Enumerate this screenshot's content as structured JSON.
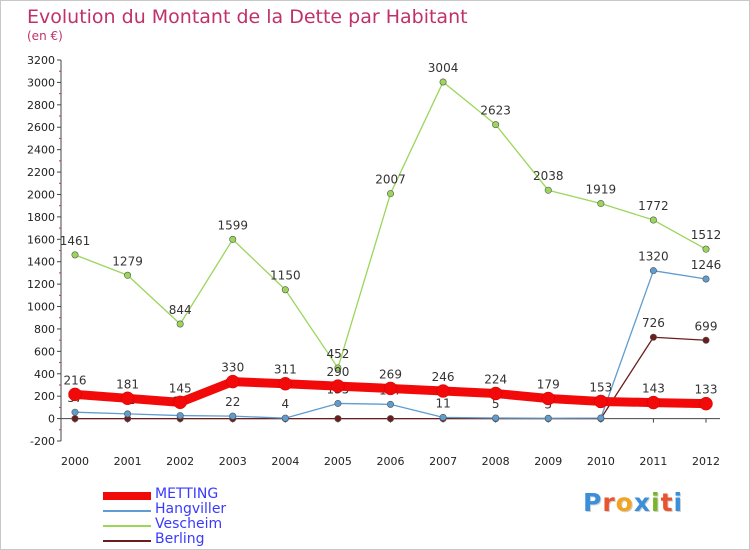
{
  "header": {
    "title": "Evolution du Montant de la Dette par Habitant",
    "subtitle": "(en €)"
  },
  "logo": {
    "text": "Proxiti",
    "colors": [
      "#3b8fd9",
      "#e8542d",
      "#f2a320",
      "#3b8fd9",
      "#79b52a",
      "#e8542d",
      "#3b8fd9"
    ]
  },
  "chart_data": {
    "type": "line",
    "title": "Evolution du Montant de la Dette par Habitant",
    "subtitle": "(en €)",
    "x": [
      "2000",
      "2001",
      "2002",
      "2003",
      "2004",
      "2005",
      "2006",
      "2007",
      "2008",
      "2009",
      "2010",
      "2011",
      "2012"
    ],
    "ylim": [
      -200,
      3200
    ],
    "yticks": [
      -200,
      0,
      200,
      400,
      600,
      800,
      1000,
      1200,
      1400,
      1600,
      1800,
      2000,
      2200,
      2400,
      2600,
      2800,
      3000,
      3200
    ],
    "grid": false,
    "legend_position": "bottom-left",
    "series": [
      {
        "name": "Berling",
        "color": "#6b1d1d",
        "values": [
          0,
          0,
          0,
          0,
          0,
          0,
          0,
          0,
          0,
          0,
          0,
          726,
          699
        ],
        "labels": [
          "",
          "",
          "",
          "",
          "",
          "",
          "",
          "",
          "",
          "",
          "",
          "726",
          "699"
        ]
      },
      {
        "name": "Hangviller",
        "color": "#5f9ccf",
        "values": [
          57,
          42,
          27,
          22,
          4,
          135,
          127,
          11,
          5,
          3,
          5,
          1320,
          1246
        ],
        "labels": [
          "57",
          "42",
          "27",
          "22",
          "4",
          "135",
          "127",
          "11",
          "5",
          "3",
          "5",
          "1320",
          "1246"
        ]
      },
      {
        "name": "Vescheim",
        "color": "#9bd65b",
        "values": [
          1461,
          1279,
          844,
          1599,
          1150,
          452,
          2007,
          3004,
          2623,
          2038,
          1919,
          1772,
          1512
        ],
        "labels": [
          "1461",
          "1279",
          "844",
          "1599",
          "1150",
          "452",
          "2007",
          "3004",
          "2623",
          "2038",
          "1919",
          "1772",
          "1512"
        ]
      },
      {
        "name": "METTING",
        "color": "#f20a0a",
        "values": [
          216,
          181,
          145,
          330,
          311,
          290,
          269,
          246,
          224,
          179,
          153,
          143,
          133
        ],
        "labels": [
          "216",
          "181",
          "145",
          "330",
          "311",
          "290",
          "269",
          "246",
          "224",
          "179",
          "153",
          "143",
          "133"
        ]
      }
    ],
    "legend": [
      "METTING",
      "Hangviller",
      "Vescheim",
      "Berling"
    ]
  }
}
